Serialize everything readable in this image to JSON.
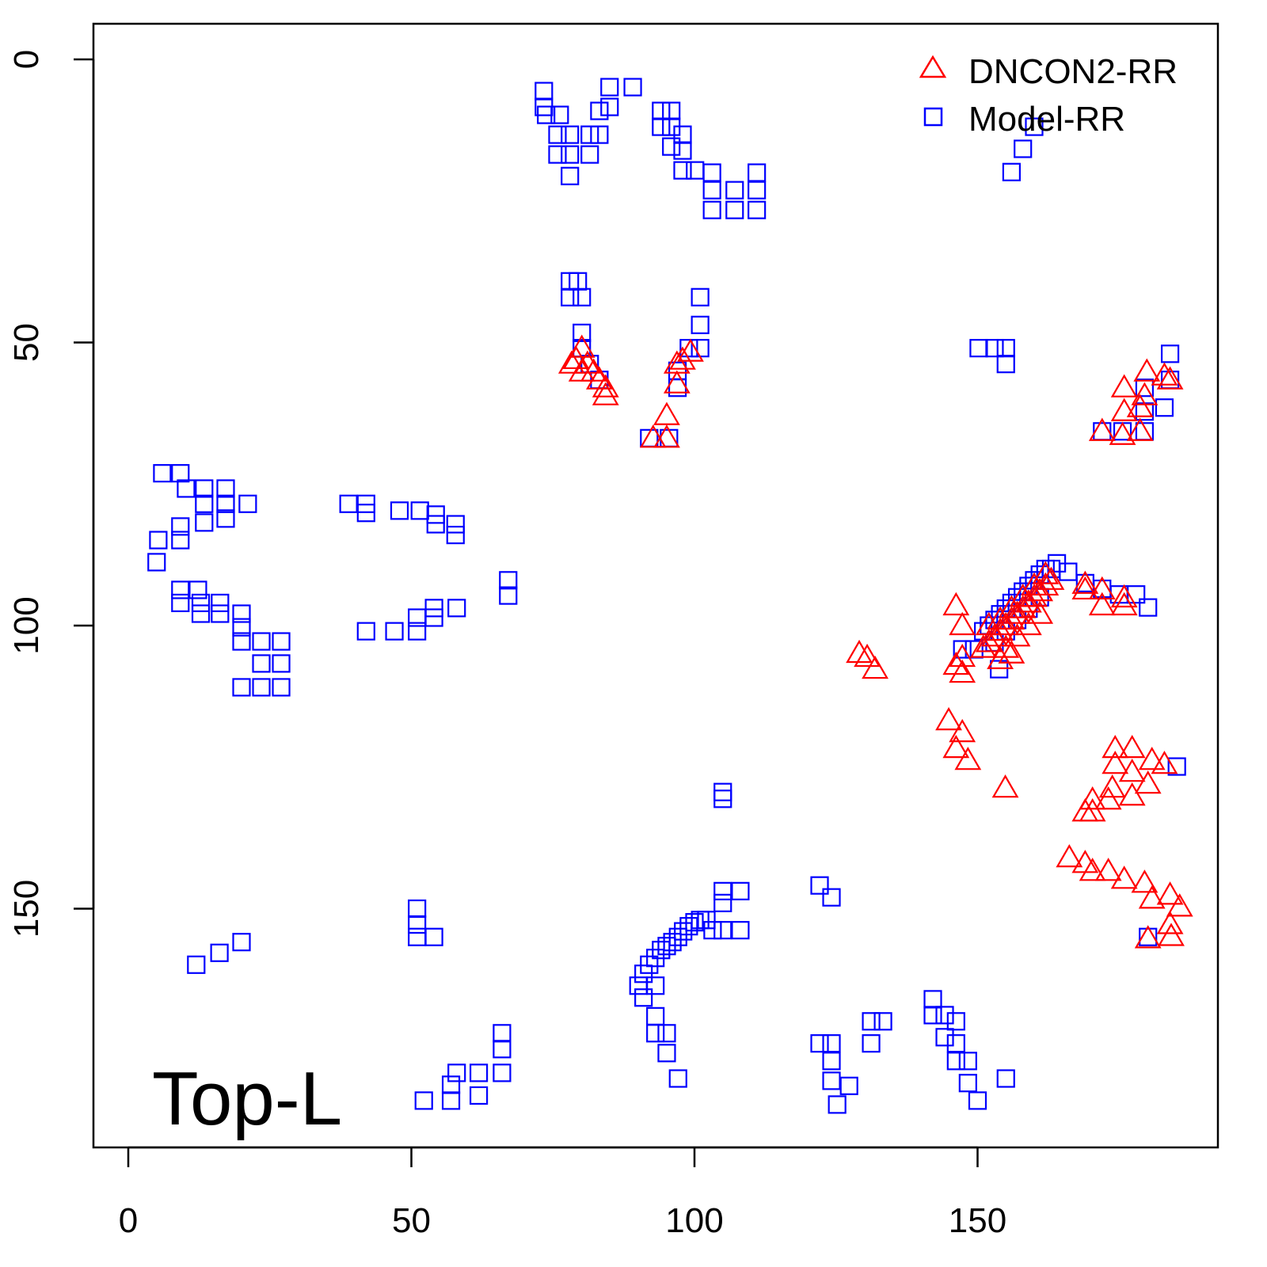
{
  "chart_data": {
    "type": "scatter",
    "title": "",
    "xlabel": "",
    "ylabel": "",
    "xlim": [
      -6.2,
      192.4
    ],
    "ylim": [
      192.2,
      -6.3
    ],
    "y_inverted": true,
    "grid": false,
    "x_ticks": [
      0,
      50,
      100,
      150
    ],
    "y_ticks": [
      0,
      50,
      100,
      150
    ],
    "x_tick_labels": [
      "0",
      "50",
      "100",
      "150"
    ],
    "y_tick_labels": [
      "0",
      "50",
      "100",
      "150"
    ],
    "annotation": "Top-L",
    "legend": {
      "placement": "top-right",
      "entries": [
        {
          "label": "DNCON2-RR",
          "color": "#ff0000",
          "marker": "triangle"
        },
        {
          "label": "Model-RR",
          "color": "#0000ff",
          "marker": "square"
        }
      ]
    },
    "series": [
      {
        "name": "Model-RR",
        "color": "#0000ff",
        "marker": "square",
        "points": [
          [
            73.4,
            5.6
          ],
          [
            73.4,
            8.4
          ],
          [
            73.8,
            9.8
          ],
          [
            76.2,
            9.8
          ],
          [
            75.8,
            13.3
          ],
          [
            78,
            13.3
          ],
          [
            75.8,
            16.8
          ],
          [
            78,
            16.8
          ],
          [
            78,
            20.6
          ],
          [
            81.5,
            13.3
          ],
          [
            83.2,
            13.3
          ],
          [
            81.5,
            16.8
          ],
          [
            83.2,
            9.1
          ],
          [
            85,
            4.9
          ],
          [
            85,
            8.4
          ],
          [
            89.1,
            4.9
          ],
          [
            94.1,
            9.1
          ],
          [
            95.9,
            9.1
          ],
          [
            94.1,
            11.9
          ],
          [
            95.9,
            11.9
          ],
          [
            95.9,
            15.4
          ],
          [
            97.9,
            13.3
          ],
          [
            97.9,
            16.1
          ],
          [
            97.9,
            19.6
          ],
          [
            100.1,
            19.6
          ],
          [
            103.1,
            20
          ],
          [
            103.1,
            23.1
          ],
          [
            103.1,
            26.6
          ],
          [
            107.1,
            23.1
          ],
          [
            107.1,
            26.6
          ],
          [
            111,
            20
          ],
          [
            111,
            23.1
          ],
          [
            111,
            26.6
          ],
          [
            78,
            39.2
          ],
          [
            79.4,
            39.2
          ],
          [
            78,
            42
          ],
          [
            80.1,
            42
          ],
          [
            80.1,
            48.3
          ],
          [
            80.1,
            51
          ],
          [
            81.5,
            53.8
          ],
          [
            83.2,
            56.6
          ],
          [
            101,
            42
          ],
          [
            101,
            46.9
          ],
          [
            101,
            51
          ],
          [
            99,
            51
          ],
          [
            97,
            55
          ],
          [
            97,
            58
          ],
          [
            92,
            66.9
          ],
          [
            95.5,
            66.9
          ],
          [
            160,
            11.9
          ],
          [
            158,
            15.8
          ],
          [
            156,
            19.9
          ],
          [
            150.2,
            51
          ],
          [
            153,
            51
          ],
          [
            155,
            51
          ],
          [
            155,
            53.8
          ],
          [
            184,
            52
          ],
          [
            184,
            56.6
          ],
          [
            179.5,
            58
          ],
          [
            183,
            61.5
          ],
          [
            179.5,
            62.2
          ],
          [
            179.5,
            65.7
          ],
          [
            172,
            65.7
          ],
          [
            175.6,
            65.7
          ],
          [
            6,
            73.1
          ],
          [
            9.2,
            73.1
          ],
          [
            10.2,
            75.8
          ],
          [
            13.4,
            75.8
          ],
          [
            17.2,
            75.8
          ],
          [
            13.4,
            78.5
          ],
          [
            17.2,
            78.5
          ],
          [
            21.1,
            78.5
          ],
          [
            13.4,
            81.8
          ],
          [
            17.2,
            81.1
          ],
          [
            9.2,
            82.5
          ],
          [
            5.3,
            84.9
          ],
          [
            9.2,
            84.9
          ],
          [
            5,
            88.8
          ],
          [
            9.2,
            93.7
          ],
          [
            12.3,
            93.7
          ],
          [
            9.2,
            96
          ],
          [
            12.8,
            96
          ],
          [
            16.2,
            96
          ],
          [
            12.8,
            97.9
          ],
          [
            16.2,
            97.9
          ],
          [
            20,
            97.9
          ],
          [
            20,
            100.3
          ],
          [
            20,
            102.8
          ],
          [
            23.5,
            102.8
          ],
          [
            27,
            102.8
          ],
          [
            23.5,
            106.7
          ],
          [
            27,
            106.7
          ],
          [
            20,
            110.9
          ],
          [
            23.5,
            110.9
          ],
          [
            27,
            110.9
          ],
          [
            38.9,
            78.5
          ],
          [
            42,
            78.5
          ],
          [
            42,
            80.1
          ],
          [
            47.9,
            79.7
          ],
          [
            51.5,
            79.7
          ],
          [
            54.3,
            80.4
          ],
          [
            54.3,
            82.1
          ],
          [
            57.8,
            82.1
          ],
          [
            57.8,
            84
          ],
          [
            67.1,
            92
          ],
          [
            67.1,
            94.7
          ],
          [
            42,
            101
          ],
          [
            47,
            101
          ],
          [
            51,
            101
          ],
          [
            51,
            98.6
          ],
          [
            54,
            98.6
          ],
          [
            54,
            96.9
          ],
          [
            58,
            96.9
          ],
          [
            12,
            159.9
          ],
          [
            16.1,
            157.8
          ],
          [
            20,
            155.9
          ],
          [
            51,
            150
          ],
          [
            51,
            152.8
          ],
          [
            51,
            155
          ],
          [
            54,
            155
          ],
          [
            52.2,
            183.9
          ],
          [
            57,
            183.9
          ],
          [
            57,
            181.1
          ],
          [
            58,
            179
          ],
          [
            61.9,
            183
          ],
          [
            61.9,
            179
          ],
          [
            66,
            172
          ],
          [
            66,
            174.8
          ],
          [
            66,
            179
          ],
          [
            90.1,
            163.6
          ],
          [
            91,
            161.5
          ],
          [
            91,
            165.7
          ],
          [
            92,
            159.9
          ],
          [
            93.1,
            158.7
          ],
          [
            94.1,
            157.3
          ],
          [
            95.1,
            156.6
          ],
          [
            96.1,
            155.9
          ],
          [
            97.1,
            155
          ],
          [
            98,
            154
          ],
          [
            99,
            153.1
          ],
          [
            100,
            152.4
          ],
          [
            101,
            152
          ],
          [
            102.1,
            152
          ],
          [
            103.2,
            153.8
          ],
          [
            105,
            153.8
          ],
          [
            108.1,
            153.8
          ],
          [
            105,
            146.9
          ],
          [
            105,
            149
          ],
          [
            108.1,
            146.9
          ],
          [
            93.1,
            163.6
          ],
          [
            93.1,
            169
          ],
          [
            93.1,
            172
          ],
          [
            95.1,
            172
          ],
          [
            95.1,
            175.5
          ],
          [
            97.1,
            180
          ],
          [
            105,
            129.4
          ],
          [
            105,
            130.6
          ],
          [
            122.1,
            145.9
          ],
          [
            124.2,
            148
          ],
          [
            122.1,
            173.8
          ],
          [
            124.2,
            173.8
          ],
          [
            124.2,
            176.9
          ],
          [
            124.2,
            180.4
          ],
          [
            127.3,
            181.3
          ],
          [
            125.2,
            184.6
          ],
          [
            131.2,
            169.9
          ],
          [
            133.3,
            169.9
          ],
          [
            131.2,
            173.8
          ],
          [
            142.1,
            166
          ],
          [
            142.1,
            168.8
          ],
          [
            144.2,
            168.8
          ],
          [
            146.2,
            169.9
          ],
          [
            146.2,
            173.8
          ],
          [
            144.2,
            172.7
          ],
          [
            146.2,
            176.9
          ],
          [
            148.3,
            176.9
          ],
          [
            148.3,
            180.8
          ],
          [
            150,
            183.9
          ],
          [
            155,
            180
          ],
          [
            180.1,
            96.8
          ],
          [
            185.2,
            124.9
          ],
          [
            180.1,
            155
          ],
          [
            151,
            101
          ],
          [
            152,
            100
          ],
          [
            153,
            99
          ],
          [
            154,
            98
          ],
          [
            155,
            97
          ],
          [
            156,
            96
          ],
          [
            157,
            95
          ],
          [
            158,
            94
          ],
          [
            159,
            93
          ],
          [
            160,
            92
          ],
          [
            161,
            91
          ],
          [
            162,
            90
          ],
          [
            163,
            90
          ],
          [
            164,
            89
          ],
          [
            153,
            103
          ],
          [
            155,
            101
          ],
          [
            157,
            99
          ],
          [
            159,
            97
          ],
          [
            161,
            95
          ],
          [
            153.8,
            107.7
          ],
          [
            147.3,
            104.2
          ],
          [
            149.4,
            104.2
          ],
          [
            166,
            90.5
          ],
          [
            169,
            92.5
          ],
          [
            172,
            93.5
          ],
          [
            175,
            94.5
          ],
          [
            178,
            94.5
          ]
        ]
      },
      {
        "name": "DNCON2-RR",
        "color": "#ff0000",
        "marker": "triangle",
        "points": [
          [
            80.1,
            51
          ],
          [
            79.1,
            53
          ],
          [
            81.1,
            53.8
          ],
          [
            82.2,
            55.2
          ],
          [
            83.2,
            56.6
          ],
          [
            84.3,
            58
          ],
          [
            80.1,
            55.2
          ],
          [
            78.3,
            53.8
          ],
          [
            84.3,
            59.4
          ],
          [
            95.1,
            62.9
          ],
          [
            92.7,
            66.9
          ],
          [
            95.1,
            66.9
          ],
          [
            96.9,
            53.8
          ],
          [
            97.9,
            53.1
          ],
          [
            99.3,
            51.7
          ],
          [
            96.9,
            57.3
          ],
          [
            179.9,
            55.2
          ],
          [
            175.9,
            58
          ],
          [
            183,
            55.9
          ],
          [
            184,
            56.6
          ],
          [
            175.9,
            62.2
          ],
          [
            178.7,
            61.5
          ],
          [
            172,
            65.7
          ],
          [
            175.6,
            66.4
          ],
          [
            178.7,
            65.7
          ],
          [
            179.5,
            59.4
          ],
          [
            129.1,
            104.9
          ],
          [
            130.5,
            105.6
          ],
          [
            131.9,
            107.7
          ],
          [
            146.2,
            96.5
          ],
          [
            147.3,
            100
          ],
          [
            147.3,
            105.6
          ],
          [
            147.3,
            108.4
          ],
          [
            146.2,
            107
          ],
          [
            151,
            104
          ],
          [
            152,
            103
          ],
          [
            153,
            102
          ],
          [
            154,
            101
          ],
          [
            155,
            100
          ],
          [
            156,
            99
          ],
          [
            157,
            98
          ],
          [
            158,
            97
          ],
          [
            159,
            96
          ],
          [
            160,
            95
          ],
          [
            161,
            94
          ],
          [
            162,
            93
          ],
          [
            163,
            92
          ],
          [
            152,
            100
          ],
          [
            154,
            99
          ],
          [
            156,
            97
          ],
          [
            158,
            95
          ],
          [
            160,
            93
          ],
          [
            162,
            91
          ],
          [
            155,
            104
          ],
          [
            157,
            102
          ],
          [
            159,
            100
          ],
          [
            161,
            98
          ],
          [
            154,
            106
          ],
          [
            156,
            105
          ],
          [
            169,
            93.7
          ],
          [
            172,
            93.7
          ],
          [
            175.9,
            95.1
          ],
          [
            169,
            92.7
          ],
          [
            172,
            96.5
          ],
          [
            175.9,
            96.5
          ],
          [
            144.9,
            116.8
          ],
          [
            147.3,
            118.9
          ],
          [
            146.2,
            121.7
          ],
          [
            148.3,
            123.8
          ],
          [
            154.9,
            128.7
          ],
          [
            174.3,
            121.7
          ],
          [
            177.3,
            121.7
          ],
          [
            180.8,
            123.8
          ],
          [
            183,
            124.5
          ],
          [
            174.3,
            124.5
          ],
          [
            177.3,
            125.9
          ],
          [
            180.1,
            128
          ],
          [
            177.3,
            130.1
          ],
          [
            173.8,
            128.7
          ],
          [
            170.3,
            130.8
          ],
          [
            169,
            132.9
          ],
          [
            170.3,
            132.9
          ],
          [
            173.1,
            130.8
          ],
          [
            166.2,
            141
          ],
          [
            169,
            142
          ],
          [
            170.3,
            143.4
          ],
          [
            173.1,
            143.4
          ],
          [
            175.9,
            144.8
          ],
          [
            179.5,
            145.5
          ],
          [
            184,
            147.6
          ],
          [
            185.7,
            149.7
          ],
          [
            180.8,
            148.3
          ],
          [
            184.2,
            154.9
          ],
          [
            180.1,
            155.3
          ],
          [
            184,
            152.8
          ]
        ]
      }
    ]
  }
}
